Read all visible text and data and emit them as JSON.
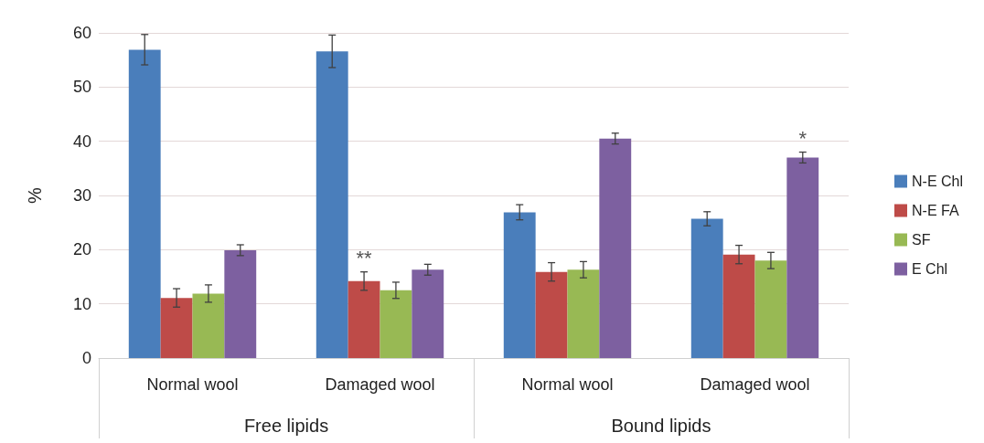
{
  "chart_data": {
    "type": "bar",
    "ylabel": "%",
    "categories": [
      "Normal wool",
      "Damaged wool",
      "Normal wool",
      "Damaged wool"
    ],
    "series": [
      {
        "name": "N-E Chl",
        "color": "#4a7ebb",
        "values": [
          56.9,
          56.6,
          26.9,
          25.7
        ],
        "errors": [
          2.8,
          3.0,
          1.4,
          1.3
        ]
      },
      {
        "name": "N-E FA",
        "color": "#be4b48",
        "values": [
          11.1,
          14.2,
          15.9,
          19.1
        ],
        "errors": [
          1.7,
          1.7,
          1.7,
          1.7
        ],
        "value_labels": [
          null,
          "**",
          null,
          null
        ]
      },
      {
        "name": "SF",
        "color": "#98b954",
        "values": [
          11.9,
          12.5,
          16.3,
          18.0
        ],
        "errors": [
          1.6,
          1.5,
          1.5,
          1.5
        ]
      },
      {
        "name": "E Chl",
        "color": "#7d60a0",
        "values": [
          19.9,
          16.3,
          40.5,
          37.0
        ],
        "errors": [
          1.0,
          1.0,
          1.0,
          1.0
        ],
        "value_labels": [
          null,
          null,
          null,
          "*"
        ]
      }
    ],
    "ylim": [
      0,
      60
    ],
    "yticks": [
      0,
      10,
      20,
      30,
      40,
      50,
      60
    ],
    "grid": "y",
    "legend": "right",
    "annotations": [
      "Free lipids",
      "Bound lipids"
    ]
  }
}
